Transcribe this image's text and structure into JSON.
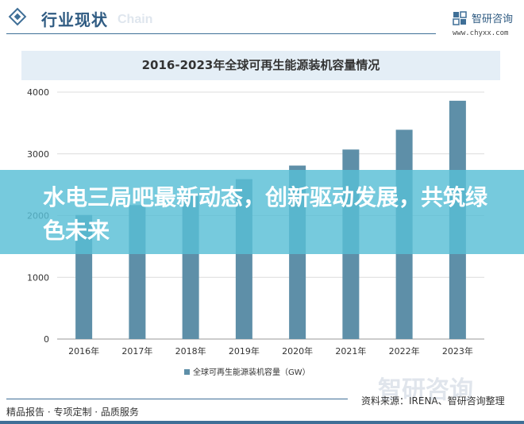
{
  "header": {
    "title": "行业现状",
    "watermark": "Chain",
    "logo_name": "智研咨询",
    "logo_url": "www.chyxx.com"
  },
  "banner": {
    "text": "水电三局吧最新动态，创新驱动发展，共筑绿色未来"
  },
  "footer": {
    "watermark": "智研咨询",
    "source": "资料来源：IRENA、智研咨询整理",
    "slogan": "精品报告 · 专项定制 · 品质服务"
  },
  "colors": {
    "bar": "#5e8fa8",
    "brand": "#3f6f97",
    "banner": "#58bed5",
    "grid": "#dcdcdc"
  },
  "chart_data": {
    "type": "bar",
    "title": "2016-2023年全球可再生能源装机容量情况",
    "categories": [
      "2016年",
      "2017年",
      "2018年",
      "2019年",
      "2020年",
      "2021年",
      "2022年",
      "2023年"
    ],
    "series": [
      {
        "name": "全球可再生能源装机容量（GW）",
        "values": [
          2010,
          2170,
          2360,
          2590,
          2810,
          3070,
          3390,
          3860
        ]
      }
    ],
    "xlabel": "",
    "ylabel": "",
    "ylim": [
      0,
      4000
    ],
    "yticks": [
      0,
      1000,
      2000,
      3000,
      4000
    ],
    "grid": true,
    "legend_position": "bottom"
  }
}
